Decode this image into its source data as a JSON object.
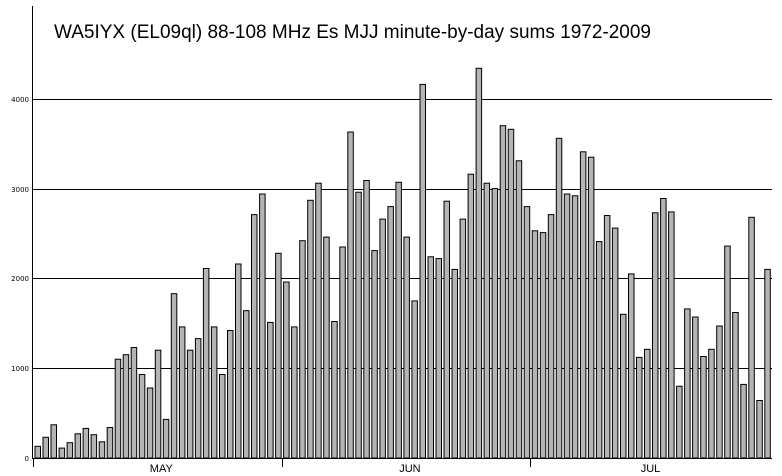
{
  "chart_data": {
    "type": "bar",
    "title": "WA5IYX (EL09ql) 88-108 MHz Es MJJ minute-by-day sums 1972-2009",
    "xlabel": "",
    "ylabel": "",
    "ylim": [
      0,
      5000
    ],
    "yticks": [
      0,
      1000,
      2000,
      3000,
      4000
    ],
    "ytick_labels": [
      "0",
      "1000",
      "2000",
      "3000",
      "4000"
    ],
    "month_labels": [
      {
        "label": "MAY",
        "day_index": 16
      },
      {
        "label": "JUN",
        "day_index": 47
      },
      {
        "label": "JUL",
        "day_index": 77
      }
    ],
    "grid": true,
    "legend": "none",
    "bar_color": "#b4b4b4",
    "days": 92,
    "values": [
      130,
      230,
      370,
      110,
      170,
      270,
      330,
      260,
      180,
      340,
      1100,
      1150,
      1230,
      930,
      780,
      1200,
      430,
      1830,
      1460,
      1200,
      1330,
      2110,
      1460,
      930,
      1420,
      2160,
      1640,
      2710,
      2940,
      1510,
      2280,
      1960,
      1460,
      2420,
      2870,
      3060,
      2460,
      1520,
      2350,
      3630,
      2960,
      3090,
      2310,
      2660,
      2800,
      3070,
      2460,
      1750,
      4160,
      2240,
      2220,
      2860,
      2100,
      2660,
      3160,
      4340,
      3060,
      3000,
      3700,
      3660,
      3310,
      2800,
      2530,
      2510,
      2710,
      3560,
      2940,
      2920,
      3410,
      3350,
      2410,
      2700,
      2560,
      1600,
      2050,
      1120,
      1210,
      2730,
      2890,
      2740,
      800,
      1660,
      1570,
      1130,
      1210,
      1470,
      2360,
      1620,
      820,
      2680,
      640,
      2100
    ]
  }
}
